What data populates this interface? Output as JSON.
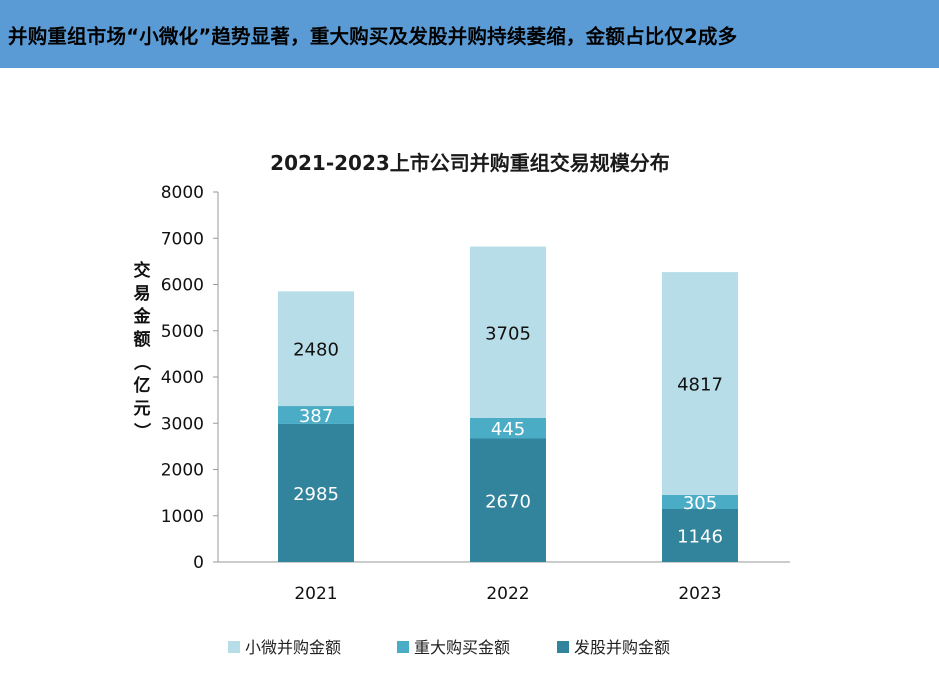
{
  "header": {
    "banner_text": "并购重组市场“小微化”趋势显著，重大购买及发股并购持续萎缩，金额占比仅2成多"
  },
  "chart_data": {
    "type": "bar",
    "stacked": true,
    "title": "2021-2023上市公司并购重组交易规模分布",
    "xlabel": "",
    "ylabel": "交易金额（亿元）",
    "ylim": [
      0,
      8000
    ],
    "yticks": [
      0,
      1000,
      2000,
      3000,
      4000,
      5000,
      6000,
      7000,
      8000
    ],
    "categories": [
      "2021",
      "2022",
      "2023"
    ],
    "series": [
      {
        "name": "发股并购金额",
        "values": [
          2985,
          2670,
          1146
        ],
        "color": "#31849b",
        "label_color": "#ffffff"
      },
      {
        "name": "重大购买金额",
        "values": [
          387,
          445,
          305
        ],
        "color": "#4bacc6",
        "label_color": "#ffffff"
      },
      {
        "name": "小微并购金额",
        "values": [
          2480,
          3705,
          4817
        ],
        "color": "#b7dde8",
        "label_color": "#111111"
      }
    ],
    "legend_order": [
      "小微并购金额",
      "重大购买金额",
      "发股并购金额"
    ],
    "legend_position": "bottom",
    "grid": false
  }
}
